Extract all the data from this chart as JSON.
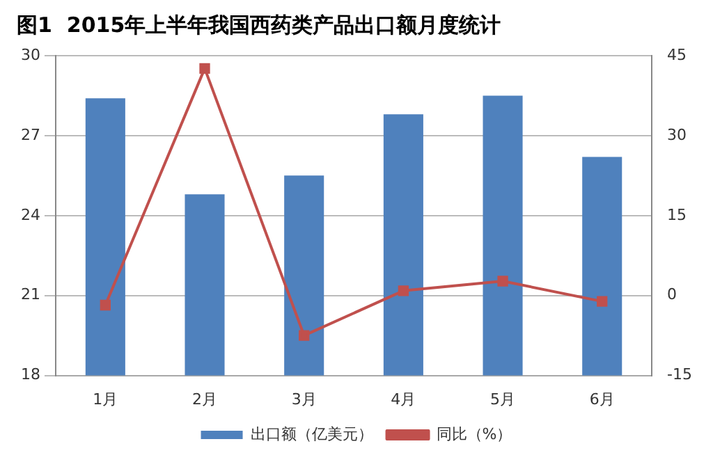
{
  "chart_data": {
    "type": "bar",
    "title": "图1  2015年上半年我国西药类产品出口额月度统计",
    "categories": [
      "1月",
      "2月",
      "3月",
      "4月",
      "5月",
      "6月"
    ],
    "series": [
      {
        "name": "出口额（亿美元）",
        "color": "#4f81bd",
        "values": [
          28.4,
          24.8,
          25.5,
          27.8,
          28.5,
          26.2
        ]
      },
      {
        "name": "同比（%）",
        "type": "line",
        "axis": "y2",
        "color": "#c0504d",
        "marker": "square",
        "values": [
          -1.8,
          42.6,
          -7.5,
          0.9,
          2.7,
          -1.1
        ]
      }
    ],
    "ylim": [
      18,
      30
    ],
    "yticks": [
      18,
      21,
      24,
      27,
      30
    ],
    "y2lim": [
      -15,
      45
    ],
    "y2ticks": [
      -15,
      0,
      15,
      30,
      45
    ],
    "grid": "y",
    "legend": "bottom"
  }
}
